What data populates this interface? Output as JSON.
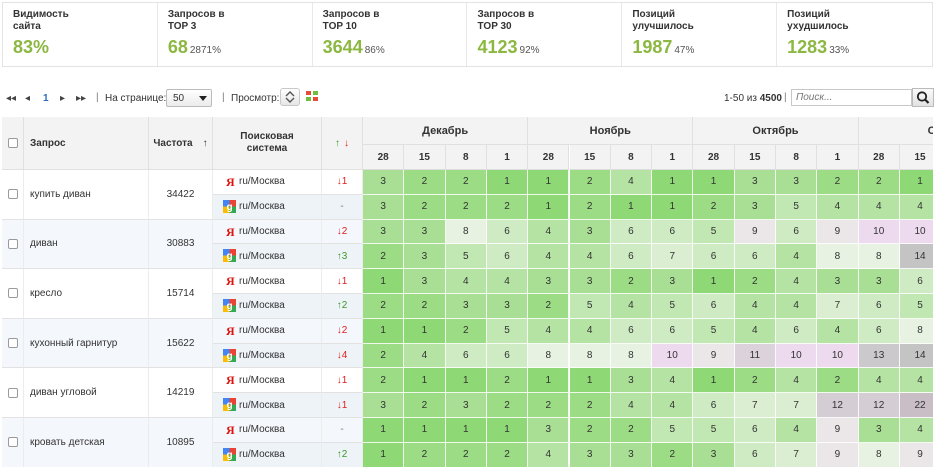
{
  "stats": [
    {
      "title": "Видимость\nсайта",
      "value": "83%",
      "pct": ""
    },
    {
      "title": "Запросов в\nTOP 3",
      "value": "68",
      "pct": "2871%"
    },
    {
      "title": "Запросов в\nTOP 10",
      "value": "3644",
      "pct": "86%"
    },
    {
      "title": "Запросов в\nTOP 30",
      "value": "4123",
      "pct": "92%"
    },
    {
      "title": "Позиций\nулучшилось",
      "value": "1987",
      "pct": "47%"
    },
    {
      "title": "Позиций\nухудшилось",
      "value": "1283",
      "pct": "33%"
    }
  ],
  "toolbar": {
    "first": "◂◂",
    "prev": "◂",
    "page": "1",
    "next": "▸",
    "last": "▸▸",
    "sep": "|",
    "per_page_label": "На странице:",
    "per_page_value": "50",
    "view_label": "Просмотр:",
    "range_text": "1-50 из ",
    "range_total": "4500",
    "search_placeholder": "Поиск..."
  },
  "table": {
    "col_query": "Запрос",
    "col_freq": "Частота",
    "col_freq_sort": "↑",
    "col_engine": "Поисковая система",
    "col_change_up": "↑",
    "col_change_down": "↓",
    "months": [
      "Декабрь",
      "Ноябрь",
      "Октябрь",
      "Сент"
    ],
    "days": [
      "28",
      "15",
      "8",
      "1",
      "28",
      "15",
      "8",
      "1",
      "28",
      "15",
      "8",
      "1",
      "28",
      "15"
    ],
    "rows": [
      {
        "query": "купить диван",
        "freq": "34422",
        "engines": [
          {
            "engine": "yandex",
            "region": "ru/Москва",
            "dir": "down",
            "change": "1",
            "positions": [
              3,
              2,
              2,
              1,
              1,
              2,
              4,
              1,
              1,
              3,
              3,
              2,
              2,
              1
            ]
          },
          {
            "engine": "google",
            "region": "ru/Москва",
            "dir": "none",
            "change": "-",
            "positions": [
              3,
              2,
              2,
              2,
              1,
              2,
              1,
              1,
              2,
              3,
              5,
              4,
              4,
              4
            ]
          }
        ]
      },
      {
        "query": "диван",
        "freq": "30883",
        "engines": [
          {
            "engine": "yandex",
            "region": "ru/Москва",
            "dir": "down",
            "change": "2",
            "positions": [
              3,
              3,
              8,
              6,
              4,
              3,
              6,
              6,
              5,
              9,
              6,
              9,
              10,
              10
            ]
          },
          {
            "engine": "google",
            "region": "ru/Москва",
            "dir": "up",
            "change": "3",
            "positions": [
              2,
              3,
              5,
              6,
              4,
              4,
              6,
              7,
              6,
              6,
              4,
              8,
              8,
              14
            ]
          }
        ]
      },
      {
        "query": "кресло",
        "freq": "15714",
        "engines": [
          {
            "engine": "yandex",
            "region": "ru/Москва",
            "dir": "down",
            "change": "1",
            "positions": [
              1,
              3,
              4,
              4,
              3,
              3,
              2,
              3,
              1,
              2,
              4,
              3,
              3,
              6
            ]
          },
          {
            "engine": "google",
            "region": "ru/Москва",
            "dir": "up",
            "change": "2",
            "positions": [
              2,
              2,
              3,
              3,
              2,
              5,
              4,
              5,
              6,
              4,
              4,
              7,
              6,
              5
            ]
          }
        ]
      },
      {
        "query": "кухонный гарнитур",
        "freq": "15622",
        "engines": [
          {
            "engine": "yandex",
            "region": "ru/Москва",
            "dir": "down",
            "change": "2",
            "positions": [
              1,
              1,
              2,
              5,
              4,
              4,
              6,
              6,
              5,
              4,
              6,
              4,
              6,
              8
            ]
          },
          {
            "engine": "google",
            "region": "ru/Москва",
            "dir": "down",
            "change": "4",
            "positions": [
              2,
              4,
              6,
              6,
              8,
              8,
              8,
              10,
              9,
              11,
              10,
              10,
              13,
              14
            ]
          }
        ]
      },
      {
        "query": "диван угловой",
        "freq": "14219",
        "engines": [
          {
            "engine": "yandex",
            "region": "ru/Москва",
            "dir": "down",
            "change": "1",
            "positions": [
              2,
              1,
              1,
              2,
              1,
              1,
              3,
              4,
              1,
              2,
              4,
              2,
              4,
              4
            ]
          },
          {
            "engine": "google",
            "region": "ru/Москва",
            "dir": "down",
            "change": "1",
            "positions": [
              3,
              2,
              3,
              2,
              2,
              2,
              4,
              4,
              6,
              7,
              7,
              12,
              12,
              22
            ]
          }
        ]
      },
      {
        "query": "кровать детская",
        "freq": "10895",
        "engines": [
          {
            "engine": "yandex",
            "region": "ru/Москва",
            "dir": "none",
            "change": "-",
            "positions": [
              1,
              1,
              1,
              1,
              3,
              2,
              2,
              5,
              5,
              6,
              4,
              9,
              3,
              4
            ]
          },
          {
            "engine": "google",
            "region": "ru/Москва",
            "dir": "up",
            "change": "2",
            "positions": [
              1,
              2,
              2,
              2,
              4,
              3,
              3,
              2,
              3,
              6,
              7,
              9,
              8,
              9
            ]
          }
        ]
      }
    ]
  }
}
